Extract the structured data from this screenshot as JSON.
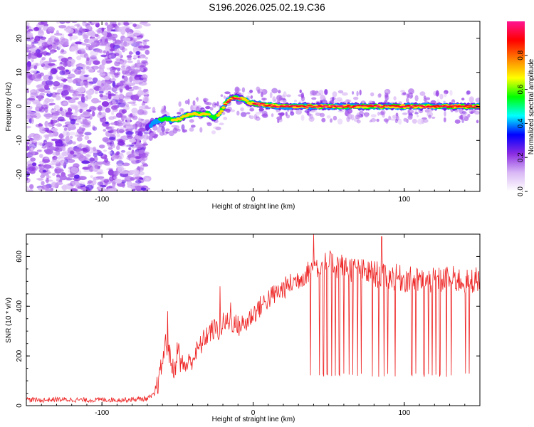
{
  "title": "S196.2026.025.02.19.C36",
  "chart_data": [
    {
      "type": "heatmap",
      "xlabel": "Height of straight line (km)",
      "ylabel": "Frequency (Hz)",
      "xlim": [
        -150,
        150
      ],
      "ylim": [
        -25,
        25
      ],
      "xticks": [
        -100,
        0,
        100
      ],
      "yticks": [
        -20,
        -10,
        0,
        10,
        20
      ],
      "colorbar": {
        "label": "Normalized spectral amplitude",
        "range": [
          0,
          1
        ],
        "ticks": [
          "0.0",
          "0.2",
          "0.4",
          "0.6",
          "0.8"
        ],
        "tick_values": [
          0,
          0.2,
          0.4,
          0.6,
          0.8
        ],
        "colormap": [
          "#ffffff",
          "#d9b8f5",
          "#8a2be2",
          "#0000ff",
          "#00ffff",
          "#00ff00",
          "#ffff00",
          "#ff8000",
          "#ff0000",
          "#ff1493"
        ]
      },
      "noise_region_x": [
        -150,
        -70
      ],
      "ridge": {
        "x": [
          -70,
          -66,
          -62,
          -58,
          -54,
          -50,
          -46,
          -42,
          -38,
          -34,
          -30,
          -26,
          -22,
          -18,
          -14,
          -10,
          -6,
          -2,
          2,
          6,
          10,
          20,
          30,
          40,
          50,
          60,
          70,
          80,
          90,
          100,
          110,
          120,
          130,
          140,
          150
        ],
        "y": [
          -6,
          -5,
          -4,
          -3.5,
          -4,
          -4,
          -3,
          -2.5,
          -2,
          -2.5,
          -2,
          -3.5,
          -2,
          1,
          2.5,
          2.5,
          2,
          1,
          0.8,
          0.6,
          0.3,
          0,
          0,
          0,
          0,
          0,
          0,
          0,
          0,
          0,
          0,
          0,
          0,
          0,
          0
        ],
        "amplitude": [
          0.3,
          0.4,
          0.5,
          0.6,
          0.65,
          0.7,
          0.7,
          0.75,
          0.75,
          0.7,
          0.7,
          0.6,
          0.7,
          0.85,
          0.9,
          0.85,
          0.8,
          0.8,
          0.85,
          0.9,
          0.9,
          0.95,
          0.95,
          0.95,
          0.9,
          0.9,
          0.95,
          0.95,
          0.95,
          0.95,
          0.95,
          0.95,
          0.95,
          0.95,
          0.95
        ]
      }
    },
    {
      "type": "line",
      "xlabel": "Height of straight line (km)",
      "ylabel": "SNR (10 * v/v)",
      "xlim": [
        -150,
        150
      ],
      "ylim": [
        0,
        690
      ],
      "xticks": [
        -100,
        0,
        100
      ],
      "yticks": [
        0,
        200,
        400,
        600
      ],
      "color": "#ee2222",
      "series": [
        {
          "x": [
            -150,
            -140,
            -130,
            -120,
            -110,
            -100,
            -90,
            -80,
            -70,
            -65,
            -62,
            -60,
            -58,
            -55,
            -52,
            -50,
            -48,
            -45,
            -42,
            -40,
            -35,
            -30,
            -25,
            -22,
            -20,
            -15,
            -10,
            -5,
            0,
            5,
            10,
            15,
            20,
            25,
            30,
            35,
            40,
            45,
            50,
            60,
            70,
            80,
            90,
            100,
            110,
            120,
            130,
            140,
            150
          ],
          "y": [
            25,
            22,
            25,
            24,
            22,
            24,
            23,
            25,
            28,
            45,
            110,
            180,
            250,
            200,
            120,
            250,
            170,
            160,
            175,
            190,
            240,
            290,
            310,
            300,
            330,
            340,
            320,
            330,
            370,
            400,
            430,
            450,
            470,
            490,
            510,
            530,
            560,
            560,
            570,
            560,
            540,
            530,
            520,
            510,
            500,
            500,
            510,
            500,
            510
          ]
        }
      ],
      "peaks": [
        {
          "x": -56.5,
          "y": 380
        },
        {
          "x": -22,
          "y": 480
        },
        {
          "x": -15,
          "y": 415
        },
        {
          "x": 40,
          "y": 690
        },
        {
          "x": 85,
          "y": 680
        }
      ],
      "dropouts": [
        38,
        44,
        46.5,
        49,
        52,
        54.5,
        57,
        60,
        63.5,
        66,
        69,
        71.5,
        79,
        83,
        86.5,
        89,
        94,
        105,
        107.5,
        113,
        116,
        118.5,
        121,
        123.5,
        128,
        131,
        140.5,
        143
      ],
      "dropout_low": 115
    }
  ]
}
